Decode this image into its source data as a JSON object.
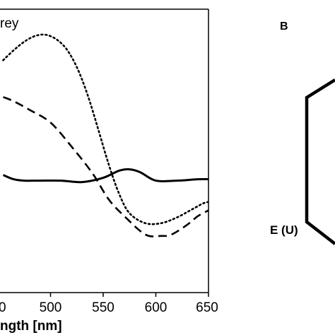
{
  "chart_data": {
    "type": "line",
    "legend_fragment": "rey",
    "xlabel_fragment": "ngth [nm]",
    "xlim": [
      450,
      650
    ],
    "x_ticks": [
      500,
      550,
      600,
      650
    ],
    "ylim": [
      -1,
      1
    ],
    "grid": false,
    "series": [
      {
        "style": "solid",
        "color": "#000000",
        "x": [
          455,
          465,
          475,
          490,
          510,
          530,
          550,
          565,
          575,
          585,
          600,
          620,
          640,
          650
        ],
        "y": [
          -0.17,
          -0.2,
          -0.21,
          -0.21,
          -0.21,
          -0.22,
          -0.19,
          -0.14,
          -0.13,
          -0.15,
          -0.21,
          -0.21,
          -0.2,
          -0.2
        ]
      },
      {
        "style": "dashed",
        "color": "#000000",
        "x": [
          455,
          465,
          480,
          500,
          520,
          540,
          555,
          570,
          590,
          605,
          615,
          630,
          640,
          650
        ],
        "y": [
          0.38,
          0.35,
          0.29,
          0.2,
          0.03,
          -0.16,
          -0.34,
          -0.46,
          -0.59,
          -0.6,
          -0.59,
          -0.52,
          -0.46,
          -0.42
        ]
      },
      {
        "style": "dotted",
        "color": "#000000",
        "x": [
          455,
          465,
          475,
          485,
          495,
          505,
          515,
          525,
          535,
          545,
          555,
          565,
          575,
          590,
          605,
          620,
          635,
          645,
          650
        ],
        "y": [
          0.64,
          0.71,
          0.77,
          0.81,
          0.82,
          0.79,
          0.72,
          0.59,
          0.4,
          0.16,
          -0.09,
          -0.3,
          -0.44,
          -0.51,
          -0.51,
          -0.47,
          -0.41,
          -0.37,
          -0.36
        ]
      }
    ]
  },
  "diagram": {
    "panel_label": "B",
    "node_label": "E (U)"
  }
}
